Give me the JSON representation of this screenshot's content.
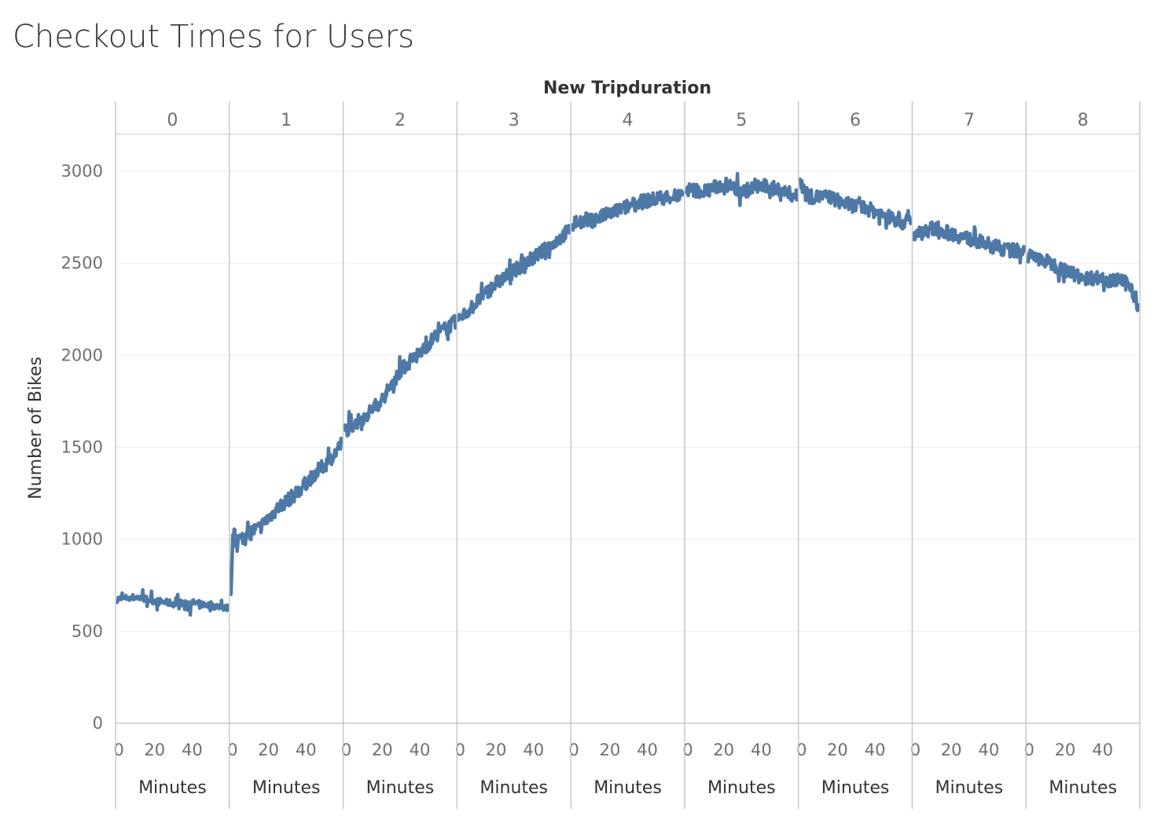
{
  "chart_data": {
    "type": "line",
    "title": "Checkout Times for Users",
    "column_header": "New Tripduration",
    "ylabel": "Number of Bikes",
    "xlabel": "Minutes",
    "ylim": [
      0,
      3200
    ],
    "y_ticks": [
      0,
      500,
      1000,
      1500,
      2000,
      2500,
      3000
    ],
    "x_ticks": [
      0,
      20,
      40
    ],
    "x_range": [
      0,
      59
    ],
    "grid": true,
    "line_color": "#4e79a7",
    "panels": [
      {
        "label": "0",
        "anchors": [
          [
            0,
            675
          ],
          [
            10,
            685
          ],
          [
            20,
            665
          ],
          [
            30,
            650
          ],
          [
            40,
            655
          ],
          [
            50,
            640
          ],
          [
            59,
            625
          ]
        ]
      },
      {
        "label": "1",
        "anchors": [
          [
            0,
            700
          ],
          [
            1,
            1025
          ],
          [
            5,
            1000
          ],
          [
            10,
            1040
          ],
          [
            15,
            1060
          ],
          [
            25,
            1170
          ],
          [
            35,
            1250
          ],
          [
            45,
            1360
          ],
          [
            52,
            1420
          ],
          [
            59,
            1520
          ]
        ]
      },
      {
        "label": "2",
        "anchors": [
          [
            0,
            1590
          ],
          [
            10,
            1660
          ],
          [
            20,
            1760
          ],
          [
            30,
            1920
          ],
          [
            40,
            2010
          ],
          [
            50,
            2120
          ],
          [
            59,
            2180
          ]
        ]
      },
      {
        "label": "3",
        "anchors": [
          [
            0,
            2190
          ],
          [
            10,
            2290
          ],
          [
            20,
            2390
          ],
          [
            30,
            2460
          ],
          [
            40,
            2530
          ],
          [
            50,
            2600
          ],
          [
            59,
            2680
          ]
        ]
      },
      {
        "label": "4",
        "anchors": [
          [
            0,
            2720
          ],
          [
            10,
            2730
          ],
          [
            20,
            2770
          ],
          [
            30,
            2810
          ],
          [
            40,
            2840
          ],
          [
            50,
            2860
          ],
          [
            59,
            2865
          ]
        ]
      },
      {
        "label": "5",
        "anchors": [
          [
            0,
            2900
          ],
          [
            10,
            2890
          ],
          [
            20,
            2930
          ],
          [
            30,
            2890
          ],
          [
            40,
            2920
          ],
          [
            50,
            2900
          ],
          [
            59,
            2860
          ]
        ]
      },
      {
        "label": "6",
        "anchors": [
          [
            0,
            2950
          ],
          [
            5,
            2860
          ],
          [
            15,
            2860
          ],
          [
            25,
            2820
          ],
          [
            35,
            2800
          ],
          [
            45,
            2760
          ],
          [
            55,
            2720
          ],
          [
            59,
            2740
          ]
        ]
      },
      {
        "label": "7",
        "anchors": [
          [
            0,
            2650
          ],
          [
            10,
            2690
          ],
          [
            20,
            2660
          ],
          [
            30,
            2630
          ],
          [
            40,
            2600
          ],
          [
            50,
            2570
          ],
          [
            59,
            2570
          ]
        ]
      },
      {
        "label": "8",
        "anchors": [
          [
            0,
            2540
          ],
          [
            10,
            2510
          ],
          [
            20,
            2460
          ],
          [
            30,
            2420
          ],
          [
            40,
            2420
          ],
          [
            50,
            2400
          ],
          [
            55,
            2380
          ],
          [
            59,
            2250
          ]
        ]
      }
    ]
  }
}
